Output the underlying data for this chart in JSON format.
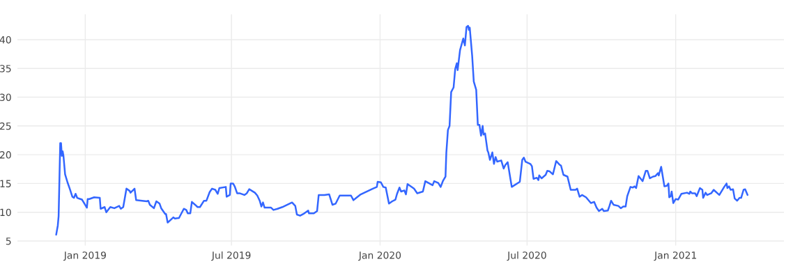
{
  "chart_data": {
    "type": "line",
    "x": [
      "2018-11-26",
      "2018-11-28",
      "2018-11-29",
      "2018-12-01",
      "2018-12-02",
      "2018-12-03",
      "2018-12-04",
      "2018-12-05",
      "2018-12-07",
      "2018-12-10",
      "2018-12-13",
      "2018-12-16",
      "2018-12-18",
      "2018-12-20",
      "2018-12-22",
      "2018-12-26",
      "2018-12-28",
      "2019-01-03",
      "2019-01-04",
      "2019-01-06",
      "2019-01-12",
      "2019-01-19",
      "2019-01-20",
      "2019-01-25",
      "2019-01-27",
      "2019-02-01",
      "2019-02-06",
      "2019-02-12",
      "2019-02-14",
      "2019-02-17",
      "2019-02-21",
      "2019-02-25",
      "2019-02-26",
      "2019-03-03",
      "2019-03-05",
      "2019-03-18",
      "2019-03-20",
      "2019-03-22",
      "2019-03-27",
      "2019-03-30",
      "2019-04-03",
      "2019-04-05",
      "2019-04-10",
      "2019-04-11",
      "2019-04-13",
      "2019-04-20",
      "2019-04-22",
      "2019-04-27",
      "2019-05-03",
      "2019-05-06",
      "2019-05-08",
      "2019-05-11",
      "2019-05-13",
      "2019-05-17",
      "2019-05-20",
      "2019-05-23",
      "2019-05-28",
      "2019-05-31",
      "2019-06-04",
      "2019-06-07",
      "2019-06-11",
      "2019-06-14",
      "2019-06-16",
      "2019-06-24",
      "2019-06-25",
      "2019-06-29",
      "2019-06-30",
      "2019-07-03",
      "2019-07-05",
      "2019-07-08",
      "2019-07-11",
      "2019-07-17",
      "2019-07-20",
      "2019-07-23",
      "2019-07-30",
      "2019-08-02",
      "2019-08-05",
      "2019-08-07",
      "2019-08-09",
      "2019-08-11",
      "2019-08-19",
      "2019-08-22",
      "2019-08-27",
      "2019-09-02",
      "2019-09-14",
      "2019-09-18",
      "2019-09-20",
      "2019-09-24",
      "2019-09-28",
      "2019-10-04",
      "2019-10-05",
      "2019-10-11",
      "2019-10-15",
      "2019-10-17",
      "2019-10-24",
      "2019-10-30",
      "2019-11-03",
      "2019-11-07",
      "2019-11-12",
      "2019-11-26",
      "2019-11-29",
      "2019-12-08",
      "2019-12-23",
      "2019-12-28",
      "2019-12-29",
      "2020-01-02",
      "2020-01-05",
      "2020-01-08",
      "2020-01-12",
      "2020-01-16",
      "2020-01-20",
      "2020-01-22",
      "2020-01-25",
      "2020-01-27",
      "2020-01-31",
      "2020-02-02",
      "2020-02-04",
      "2020-02-12",
      "2020-02-16",
      "2020-02-23",
      "2020-02-26",
      "2020-03-06",
      "2020-03-08",
      "2020-03-13",
      "2020-03-16",
      "2020-03-19",
      "2020-03-22",
      "2020-03-23",
      "2020-03-25",
      "2020-03-27",
      "2020-03-29",
      "2020-04-01",
      "2020-04-03",
      "2020-04-05",
      "2020-04-06",
      "2020-04-09",
      "2020-04-13",
      "2020-04-15",
      "2020-04-17",
      "2020-04-19",
      "2020-04-20",
      "2020-04-21",
      "2020-04-24",
      "2020-04-26",
      "2020-04-29",
      "2020-05-01",
      "2020-05-03",
      "2020-05-05",
      "2020-05-07",
      "2020-05-08",
      "2020-05-10",
      "2020-05-13",
      "2020-05-14",
      "2020-05-16",
      "2020-05-19",
      "2020-05-21",
      "2020-05-23",
      "2020-05-25",
      "2020-05-30",
      "2020-06-02",
      "2020-06-04",
      "2020-06-07",
      "2020-06-12",
      "2020-06-22",
      "2020-06-25",
      "2020-06-27",
      "2020-06-29",
      "2020-07-05",
      "2020-07-07",
      "2020-07-09",
      "2020-07-13",
      "2020-07-15",
      "2020-07-16",
      "2020-07-19",
      "2020-07-24",
      "2020-07-26",
      "2020-07-29",
      "2020-08-02",
      "2020-08-06",
      "2020-08-10",
      "2020-08-12",
      "2020-08-15",
      "2020-08-20",
      "2020-08-24",
      "2020-08-30",
      "2020-09-01",
      "2020-09-04",
      "2020-09-07",
      "2020-09-12",
      "2020-09-18",
      "2020-09-22",
      "2020-09-25",
      "2020-09-28",
      "2020-10-02",
      "2020-10-04",
      "2020-10-09",
      "2020-10-11",
      "2020-10-13",
      "2020-10-16",
      "2020-10-22",
      "2020-10-25",
      "2020-10-28",
      "2020-10-31",
      "2020-11-02",
      "2020-11-06",
      "2020-11-09",
      "2020-11-11",
      "2020-11-13",
      "2020-11-16",
      "2020-11-21",
      "2020-11-25",
      "2020-11-27",
      "2020-11-30",
      "2020-12-04",
      "2020-12-07",
      "2020-12-10",
      "2020-12-11",
      "2020-12-14",
      "2020-12-18",
      "2020-12-21",
      "2020-12-23",
      "2020-12-24",
      "2020-12-26",
      "2020-12-27",
      "2020-12-29",
      "2021-01-01",
      "2021-01-04",
      "2021-01-08",
      "2021-01-15",
      "2021-01-18",
      "2021-01-19",
      "2021-01-21",
      "2021-01-25",
      "2021-01-27",
      "2021-01-31",
      "2021-02-03",
      "2021-02-04",
      "2021-02-07",
      "2021-02-09",
      "2021-02-14",
      "2021-02-17",
      "2021-02-24",
      "2021-03-02",
      "2021-03-05",
      "2021-03-06",
      "2021-03-08",
      "2021-03-10",
      "2021-03-13",
      "2021-03-15",
      "2021-03-18",
      "2021-03-21",
      "2021-03-23",
      "2021-03-26",
      "2021-03-28",
      "2021-03-31"
    ],
    "series": [
      {
        "color": "#3366ff",
        "values": [
          6.1,
          7.7,
          9.3,
          22.0,
          22.0,
          19.8,
          20.6,
          19.8,
          16.6,
          15.2,
          14.0,
          12.7,
          12.5,
          13.2,
          12.5,
          12.3,
          12.2,
          10.8,
          12.3,
          12.3,
          12.6,
          12.5,
          10.6,
          10.9,
          10.0,
          10.9,
          10.7,
          11.1,
          10.6,
          10.9,
          14.1,
          13.7,
          13.4,
          14.1,
          12.1,
          11.9,
          12.0,
          11.3,
          10.7,
          11.9,
          11.5,
          10.7,
          9.7,
          9.7,
          8.2,
          9.1,
          8.9,
          9.0,
          10.6,
          10.4,
          9.8,
          9.8,
          11.8,
          11.3,
          10.9,
          10.9,
          12.0,
          12.0,
          13.5,
          14.1,
          13.9,
          13.2,
          14.2,
          14.4,
          12.7,
          13.0,
          15.0,
          15.0,
          14.5,
          13.3,
          13.3,
          13.0,
          13.3,
          14.0,
          13.4,
          12.9,
          12.0,
          11.0,
          11.7,
          10.8,
          10.8,
          10.4,
          10.6,
          10.9,
          11.7,
          11.1,
          9.6,
          9.4,
          9.7,
          10.3,
          9.8,
          9.8,
          10.2,
          13.0,
          13.0,
          13.1,
          11.3,
          11.5,
          12.9,
          12.9,
          12.1,
          13.1,
          14.1,
          14.4,
          15.3,
          15.2,
          14.4,
          14.3,
          11.5,
          11.9,
          12.2,
          13.2,
          14.3,
          13.6,
          13.8,
          13.1,
          14.9,
          14.1,
          13.3,
          13.6,
          15.4,
          14.7,
          15.4,
          15.1,
          14.4,
          15.5,
          16.2,
          20.3,
          24.3,
          25.0,
          30.9,
          31.7,
          34.9,
          35.9,
          34.7,
          38.2,
          40.2,
          39.0,
          42.2,
          42.4,
          41.7,
          42.1,
          37.2,
          32.7,
          31.3,
          25.2,
          25.2,
          23.3,
          25.0,
          23.5,
          23.7,
          20.7,
          20.4,
          19.1,
          20.4,
          18.4,
          19.6,
          18.8,
          19.0,
          17.6,
          18.2,
          18.7,
          14.4,
          15.3,
          19.1,
          19.5,
          18.8,
          18.4,
          18.0,
          15.8,
          16.0,
          15.6,
          16.4,
          15.9,
          16.5,
          17.2,
          17.1,
          16.6,
          18.9,
          18.3,
          18.1,
          16.5,
          16.2,
          13.9,
          13.9,
          14.1,
          12.7,
          13.0,
          12.6,
          11.6,
          11.8,
          10.8,
          10.2,
          10.6,
          10.2,
          10.3,
          11.1,
          12.0,
          11.3,
          11.1,
          10.7,
          11.0,
          11.0,
          12.8,
          14.4,
          14.3,
          14.5,
          14.2,
          16.3,
          15.4,
          17.2,
          17.2,
          15.9,
          16.2,
          16.3,
          16.8,
          16.4,
          17.9,
          14.5,
          14.6,
          15.0,
          12.6,
          12.8,
          13.6,
          11.6,
          12.3,
          12.2,
          13.2,
          13.4,
          13.2,
          13.6,
          13.3,
          13.3,
          12.8,
          14.2,
          13.9,
          12.5,
          13.4,
          13.0,
          13.3,
          13.9,
          13.0,
          14.4,
          15.0,
          14.2,
          14.5,
          13.9,
          14.0,
          12.4,
          12.0,
          12.5,
          12.5,
          13.9,
          14.0,
          13.0
        ]
      }
    ],
    "xlim": [
      "2018-10-09",
      "2021-05-15"
    ],
    "xticks": [
      {
        "value": "2019-01-01",
        "label": "Jan 2019"
      },
      {
        "value": "2019-07-01",
        "label": "Jul 2019"
      },
      {
        "value": "2020-01-01",
        "label": "Jan 2020"
      },
      {
        "value": "2020-07-01",
        "label": "Jul 2020"
      },
      {
        "value": "2021-01-01",
        "label": "Jan 2021"
      }
    ],
    "ylim": [
      4.2,
      44.4
    ],
    "yticks": [
      5,
      10,
      15,
      20,
      25,
      30,
      35,
      40
    ],
    "grid": true,
    "line_style": "solid",
    "marker": "none"
  }
}
